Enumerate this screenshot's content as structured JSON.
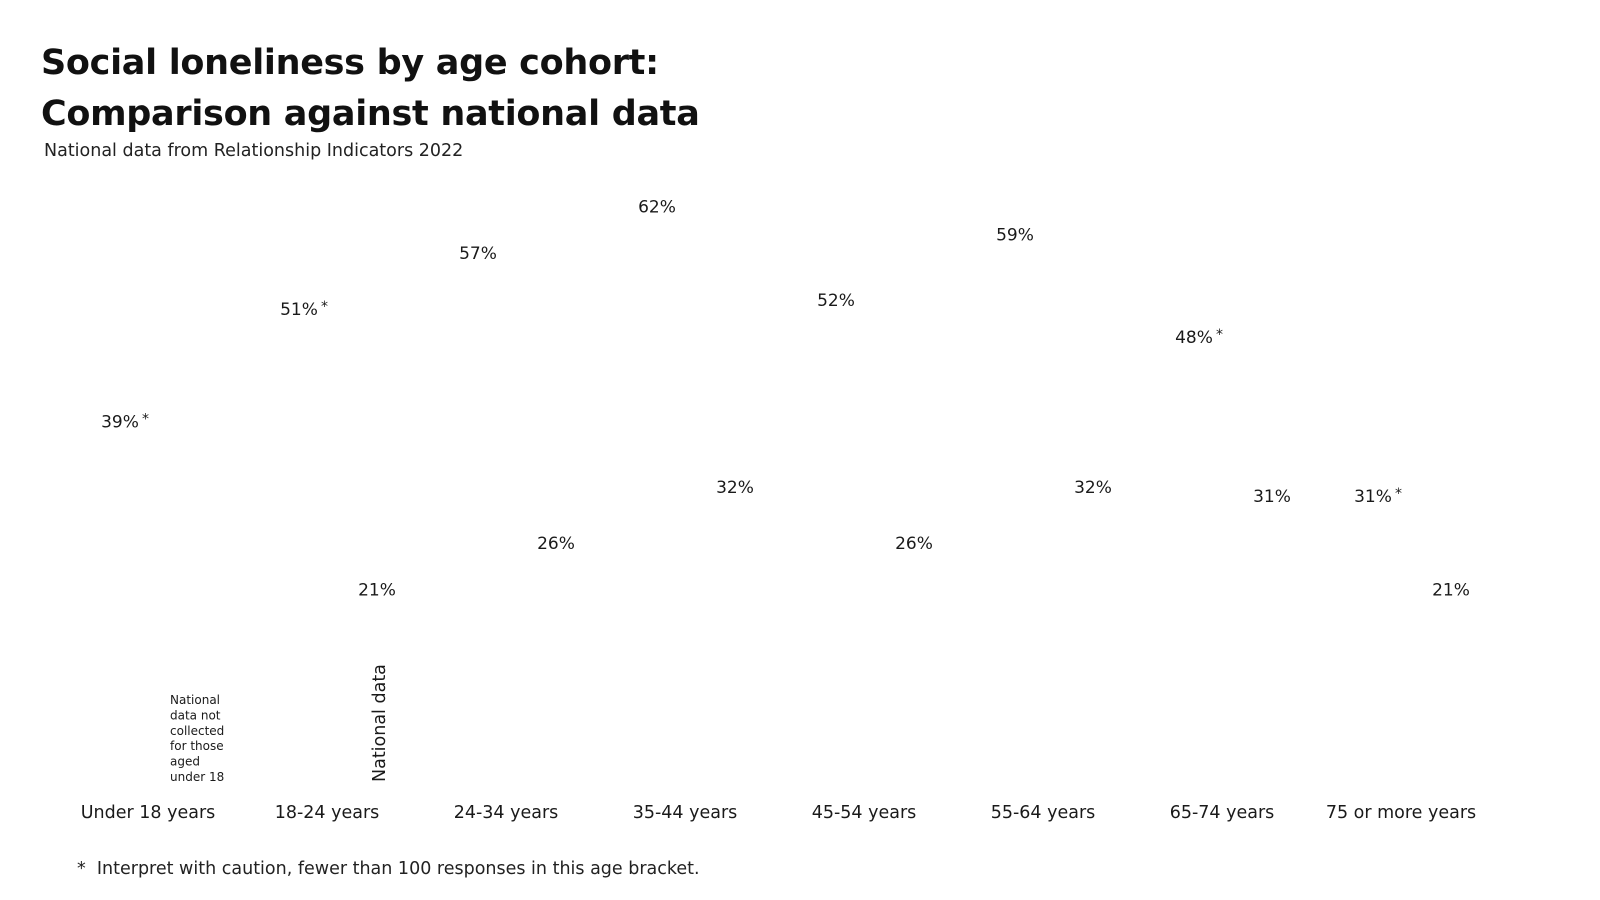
{
  "header": {
    "title_line1": "Social loneliness by age cohort:",
    "title_line2": "Comparison against national data",
    "subtitle": "National data from Relationship Indicators 2022"
  },
  "footnote": "*  Interpret with caution, fewer than 100 responses in this age bracket.",
  "chart_data": {
    "type": "bar",
    "title": "Social loneliness by age cohort: Comparison against national data",
    "subtitle": "National data from Relationship Indicators 2022",
    "categories": [
      "Under 18 years",
      "18-24 years",
      "24-34 years",
      "35-44 years",
      "45-54 years",
      "55-64 years",
      "65-74 years",
      "75 or more years"
    ],
    "value_unit": "%",
    "ylim": [
      0,
      100
    ],
    "series": [
      {
        "values": [
          39,
          51,
          57,
          62,
          52,
          59,
          48,
          31
        ],
        "labels": [
          "39%",
          "51%",
          "57%",
          "62%",
          "52%",
          "59%",
          "48%",
          "31%"
        ],
        "caution": [
          true,
          true,
          false,
          false,
          false,
          false,
          true,
          true
        ]
      },
      {
        "name": "National data",
        "values": [
          null,
          21,
          26,
          32,
          26,
          32,
          31,
          21
        ],
        "labels": [
          "",
          "21%",
          "26%",
          "32%",
          "26%",
          "32%",
          "31%",
          "21%"
        ]
      }
    ],
    "annotations": [
      {
        "category": "Under 18 years",
        "text": [
          "National",
          "data not",
          "collected",
          "for those",
          "aged",
          "under 18"
        ]
      }
    ],
    "caution_marker": "*",
    "grid": false,
    "legend": "none"
  }
}
